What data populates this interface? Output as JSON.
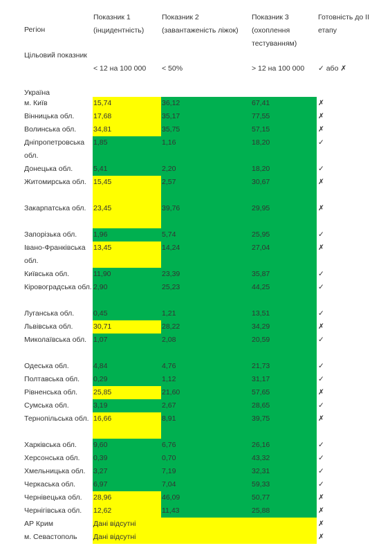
{
  "colors": {
    "ok": "#00b050",
    "bad": "#ffff00"
  },
  "header": {
    "region": "Регіон",
    "ind1": "Показник 1 (інцидентність)",
    "ind2": "Показник 2 (завантаженість ліжок)",
    "ind3": "Показник 3 (охоплення тестуванням)",
    "ready": "Готовність до II етапу"
  },
  "target": {
    "label": "Цільовий показник",
    "ind1": "< 12 на 100 000",
    "ind2": "< 50%",
    "ind3": "> 12 на 100 000",
    "ready": "✓ або ✗"
  },
  "ukraine_label": "Україна",
  "rows": [
    {
      "region": "м. Київ",
      "v1": "15,74",
      "v2": "36,12",
      "v3": "67,41",
      "ready": "✗",
      "c1": "bad",
      "c2": "ok",
      "c3": "ok"
    },
    {
      "region": "Вінницька обл.",
      "v1": "17,68",
      "v2": "35,17",
      "v3": "77,55",
      "ready": "✗",
      "c1": "bad",
      "c2": "ok",
      "c3": "ok"
    },
    {
      "region": "Волинська обл.",
      "v1": "34,81",
      "v2": "35,75",
      "v3": "57,15",
      "ready": "✗",
      "c1": "bad",
      "c2": "ok",
      "c3": "ok"
    },
    {
      "region": "Дніпропетровська обл.",
      "v1": "1,85",
      "v2": "1,16",
      "v3": "18,20",
      "ready": "✓",
      "c1": "ok",
      "c2": "ok",
      "c3": "ok"
    },
    {
      "region": "Донецька обл.",
      "v1": "5,41",
      "v2": "2,20",
      "v3": "18,20",
      "ready": "✓",
      "c1": "ok",
      "c2": "ok",
      "c3": "ok"
    },
    {
      "region": "Житомирська обл.",
      "v1": "15,45",
      "v2": "2,57",
      "v3": "30,67",
      "ready": "✗",
      "c1": "bad",
      "c2": "ok",
      "c3": "ok"
    },
    {
      "region": "Закарпатська обл.",
      "v1": "23,45",
      "v2": "39,76",
      "v3": "29,95",
      "ready": "✗",
      "c1": "bad",
      "c2": "ok",
      "c3": "ok"
    },
    {
      "region": "Запорізька обл.",
      "v1": "1,96",
      "v2": "5,74",
      "v3": "25,95",
      "ready": "✓",
      "c1": "ok",
      "c2": "ok",
      "c3": "ok"
    },
    {
      "region": "Івано-Франківська обл.",
      "v1": "13,45",
      "v2": "14,24",
      "v3": "27,04",
      "ready": "✗",
      "c1": "bad",
      "c2": "ok",
      "c3": "ok"
    },
    {
      "region": "Київська обл.",
      "v1": "11,90",
      "v2": "23,39",
      "v3": "35,87",
      "ready": "✓",
      "c1": "ok",
      "c2": "ok",
      "c3": "ok"
    },
    {
      "region": "Кіровоградська обл.",
      "v1": "2,90",
      "v2": "25,23",
      "v3": "44,25",
      "ready": "✓",
      "c1": "ok",
      "c2": "ok",
      "c3": "ok"
    },
    {
      "region": "Луганська обл.",
      "v1": "0,45",
      "v2": "1,21",
      "v3": "13,51",
      "ready": "✓",
      "c1": "ok",
      "c2": "ok",
      "c3": "ok"
    },
    {
      "region": "Львівська обл.",
      "v1": "30,71",
      "v2": "28,22",
      "v3": "34,29",
      "ready": "✗",
      "c1": "bad",
      "c2": "ok",
      "c3": "ok"
    },
    {
      "region": "Миколаївська обл.",
      "v1": "1,07",
      "v2": "2,08",
      "v3": "20,59",
      "ready": "✓",
      "c1": "ok",
      "c2": "ok",
      "c3": "ok"
    },
    {
      "region": "Одеська обл.",
      "v1": "4,84",
      "v2": "4,76",
      "v3": "21,73",
      "ready": "✓",
      "c1": "ok",
      "c2": "ok",
      "c3": "ok"
    },
    {
      "region": "Полтавська обл.",
      "v1": "0,29",
      "v2": "1,12",
      "v3": "31,17",
      "ready": "✓",
      "c1": "ok",
      "c2": "ok",
      "c3": "ok"
    },
    {
      "region": "Рівненська обл.",
      "v1": "25,85",
      "v2": "21,60",
      "v3": "57,65",
      "ready": "✗",
      "c1": "bad",
      "c2": "ok",
      "c3": "ok"
    },
    {
      "region": "Сумська обл.",
      "v1": "3,19",
      "v2": "2,67",
      "v3": "28,65",
      "ready": "✓",
      "c1": "ok",
      "c2": "ok",
      "c3": "ok"
    },
    {
      "region": "Тернопільська обл.",
      "v1": "16,66",
      "v2": "8,91",
      "v3": "39,75",
      "ready": "✗",
      "c1": "bad",
      "c2": "ok",
      "c3": "ok"
    },
    {
      "region": "Харківська обл.",
      "v1": "9,60",
      "v2": "6,76",
      "v3": "26,16",
      "ready": "✓",
      "c1": "ok",
      "c2": "ok",
      "c3": "ok"
    },
    {
      "region": "Херсонська обл.",
      "v1": "0,39",
      "v2": "0,70",
      "v3": "43,32",
      "ready": "✓",
      "c1": "ok",
      "c2": "ok",
      "c3": "ok"
    },
    {
      "region": "Хмельницька обл.",
      "v1": "3,27",
      "v2": "7,19",
      "v3": "32,31",
      "ready": "✓",
      "c1": "ok",
      "c2": "ok",
      "c3": "ok"
    },
    {
      "region": "Черкаська обл.",
      "v1": "6,97",
      "v2": "7,04",
      "v3": "59,33",
      "ready": "✓",
      "c1": "ok",
      "c2": "ok",
      "c3": "ok"
    },
    {
      "region": "Чернівецька обл.",
      "v1": "28,96",
      "v2": "46,09",
      "v3": "50,77",
      "ready": "✗",
      "c1": "bad",
      "c2": "ok",
      "c3": "ok"
    },
    {
      "region": "Чернігівська обл.",
      "v1": "12,62",
      "v2": "11,43",
      "v3": "25,88",
      "ready": "✗",
      "c1": "bad",
      "c2": "ok",
      "c3": "ok"
    },
    {
      "region": "АР Крим",
      "nodata": "Дані відсутні",
      "ready": "✗"
    },
    {
      "region": "м. Севастополь",
      "nodata": "Дані відсутні",
      "ready": "✗"
    }
  ]
}
